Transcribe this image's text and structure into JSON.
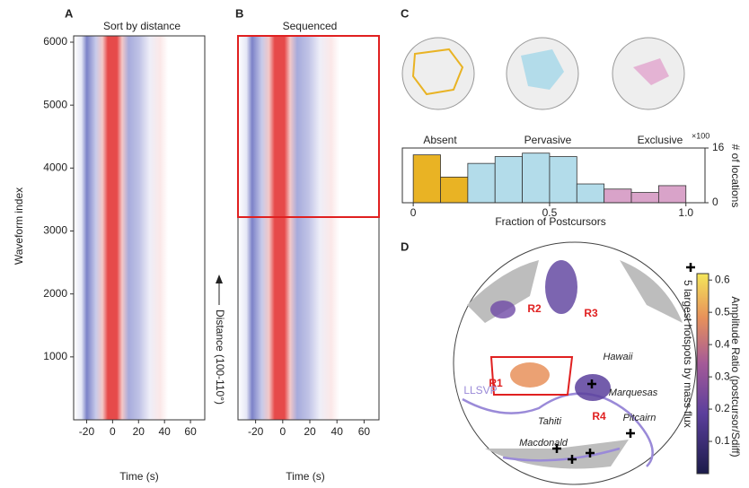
{
  "chart_data": [
    {
      "type": "heatmap",
      "panel": "A",
      "title": "Sort by distance",
      "xlabel": "Time (s)",
      "ylabel": "Waveform index",
      "xlim": [
        -30,
        71
      ],
      "ylim": [
        0,
        6100
      ],
      "xticks": [
        -20,
        0,
        20,
        40,
        60
      ],
      "yticks": [
        1000,
        2000,
        3000,
        4000,
        5000,
        6000
      ],
      "annotation": "Distance (100-110°)"
    },
    {
      "type": "heatmap",
      "panel": "B",
      "title": "Sequenced",
      "xlabel": "Time (s)",
      "xlim": [
        -33,
        71
      ],
      "ylim": [
        0,
        6100
      ],
      "xticks": [
        -20,
        0,
        20,
        40,
        60
      ]
    },
    {
      "type": "histogram",
      "panel": "C",
      "xlabel": "Fraction of Postcursors",
      "ylabel": "# of locations",
      "multiplier": "×100",
      "bins": [
        0,
        0.1,
        0.2,
        0.3,
        0.4,
        0.5,
        0.6,
        0.7,
        0.8,
        0.9,
        1.0
      ],
      "values": [
        14,
        7.5,
        11.5,
        13.5,
        14.5,
        13.5,
        5.5,
        4,
        3,
        5
      ],
      "colors": [
        "#e9b324",
        "#e9b324",
        "#b3dcea",
        "#b3dcea",
        "#b3dcea",
        "#b3dcea",
        "#b3dcea",
        "#d9a3c9",
        "#d9a3c9",
        "#d9a3c9"
      ],
      "xlim": [
        -0.04,
        1.07
      ],
      "xticks": [
        0,
        0.5,
        {
          "value": 1,
          "label": "1.0"
        }
      ],
      "ylim": [
        0,
        16
      ],
      "yticks": [
        0,
        16
      ],
      "annotations": [
        "Absent",
        "Pervasive",
        "Exclusive"
      ]
    },
    {
      "type": "map",
      "panel": "D",
      "legend": "5 largest hotspots by mass flux",
      "labels": [
        "R1",
        "R2",
        "R3",
        "R4",
        "Hawaii",
        "Marquesas",
        "Pitcairn",
        "Tahiti",
        "Macdonald",
        "LLSVP"
      ],
      "colorbar": {
        "label": "Amplitude Ratio (postcursor/Sdiff)",
        "lim": [
          0,
          0.62
        ],
        "ticks": [
          0.1,
          0.2,
          0.3,
          0.4,
          0.5,
          0.6
        ]
      }
    }
  ]
}
